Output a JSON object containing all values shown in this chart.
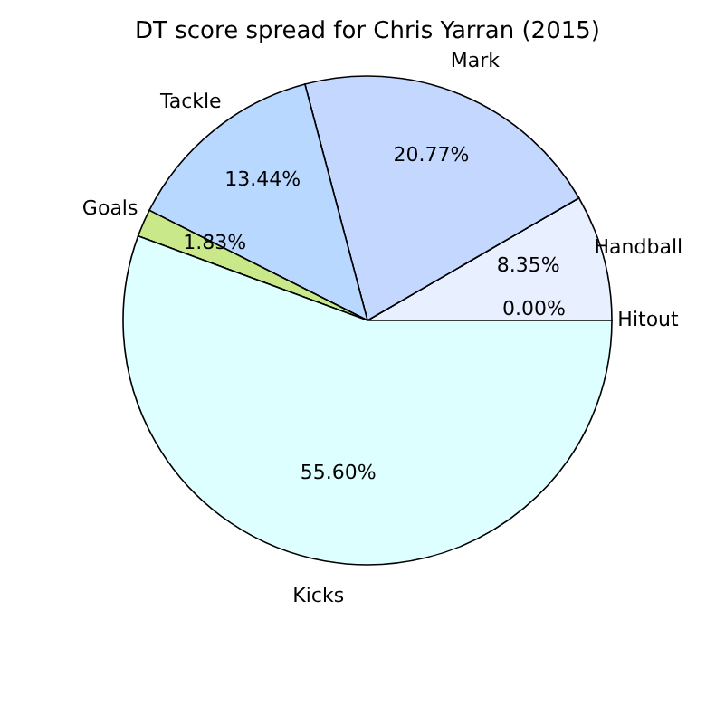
{
  "chart_data": {
    "type": "pie",
    "title": "DT score spread for Chris Yarran (2015)",
    "categories": [
      "Hitout",
      "Handball",
      "Mark",
      "Tackle",
      "Goals",
      "Kicks"
    ],
    "values": [
      0.0,
      8.35,
      20.77,
      13.44,
      1.83,
      55.6
    ],
    "value_labels": [
      "0.00%",
      "8.35%",
      "20.77%",
      "13.44%",
      "1.83%",
      "55.60%"
    ],
    "colors": [
      "#ffffff",
      "#e8f0ff",
      "#c4d8ff",
      "#b8d8ff",
      "#c8e88a",
      "#ddffff"
    ]
  }
}
